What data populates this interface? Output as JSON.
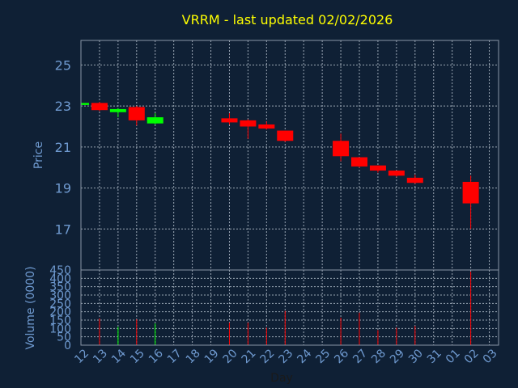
{
  "chart_data": {
    "type": "candlestick",
    "title": "VRRM - last updated 02/02/2026",
    "xlabel": "Day",
    "price_ylabel": "Price",
    "volume_ylabel": "Volume (0000)",
    "x_ticks": [
      "12",
      "13",
      "14",
      "15",
      "16",
      "17",
      "18",
      "19",
      "20",
      "21",
      "22",
      "23",
      "24",
      "25",
      "26",
      "27",
      "28",
      "29",
      "30",
      "31",
      "01",
      "02",
      "03"
    ],
    "price_ticks": [
      17,
      19,
      21,
      23,
      25
    ],
    "price_ylim": [
      15.0,
      26.2
    ],
    "volume_ticks": [
      0,
      50,
      100,
      150,
      200,
      250,
      300,
      350,
      400,
      450
    ],
    "volume_ylim": [
      0,
      450
    ],
    "grid": true,
    "colors": {
      "up": "#00ff00",
      "down": "#ff0000",
      "title": "#ffff00",
      "axis_text": "#6f9ad0",
      "grid": "#9aa6b4",
      "frame": "#8a96a6",
      "background": "#0f2035",
      "plot_background": "#0f2035"
    },
    "candles": [
      {
        "x": 0,
        "open": 23.05,
        "close": 23.15,
        "high": 23.2,
        "low": 23.0,
        "volume": 0
      },
      {
        "x": 1,
        "open": 23.15,
        "close": 22.8,
        "high": 23.2,
        "low": 22.75,
        "volume": 160
      },
      {
        "x": 2,
        "open": 22.7,
        "close": 22.85,
        "high": 22.9,
        "low": 22.45,
        "volume": 110
      },
      {
        "x": 3,
        "open": 22.95,
        "close": 22.3,
        "high": 23.0,
        "low": 22.05,
        "volume": 155
      },
      {
        "x": 4,
        "open": 22.15,
        "close": 22.45,
        "high": 22.65,
        "low": 22.1,
        "volume": 130
      },
      {
        "x": 8,
        "open": 22.4,
        "close": 22.2,
        "high": 22.65,
        "low": 22.1,
        "volume": 135
      },
      {
        "x": 9,
        "open": 22.3,
        "close": 22.0,
        "high": 22.35,
        "low": 21.4,
        "volume": 135
      },
      {
        "x": 10,
        "open": 22.1,
        "close": 21.9,
        "high": 22.25,
        "low": 21.85,
        "volume": 105
      },
      {
        "x": 11,
        "open": 21.8,
        "close": 21.3,
        "high": 21.8,
        "low": 21.25,
        "volume": 205
      },
      {
        "x": 14,
        "open": 21.3,
        "close": 20.55,
        "high": 21.65,
        "low": 20.3,
        "volume": 165
      },
      {
        "x": 15,
        "open": 20.5,
        "close": 20.05,
        "high": 20.5,
        "low": 20.0,
        "volume": 195
      },
      {
        "x": 16,
        "open": 20.1,
        "close": 19.85,
        "high": 20.1,
        "low": 19.75,
        "volume": 90
      },
      {
        "x": 17,
        "open": 19.85,
        "close": 19.6,
        "high": 19.85,
        "low": 19.55,
        "volume": 105
      },
      {
        "x": 18,
        "open": 19.5,
        "close": 19.25,
        "high": 19.65,
        "low": 19.2,
        "volume": 115
      },
      {
        "x": 21,
        "open": 19.3,
        "close": 18.25,
        "high": 19.6,
        "low": 17.0,
        "volume": 440
      }
    ]
  }
}
